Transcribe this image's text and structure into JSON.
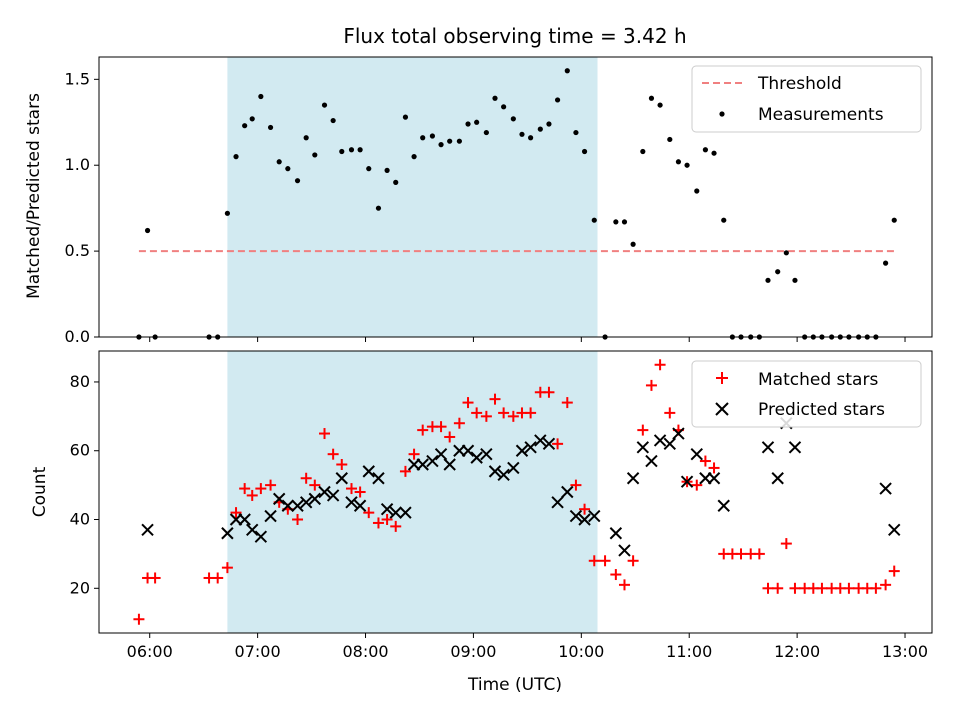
{
  "chart_data": {
    "title": "Flux total observing time = 3.42 h",
    "xlabel": "Time (UTC)",
    "x_ticks": [
      "06:00",
      "07:00",
      "08:00",
      "09:00",
      "10:00",
      "11:00",
      "12:00",
      "13:00"
    ],
    "x_unit": "hours (UTC)",
    "xlim": [
      5.53,
      13.25
    ],
    "shaded_region": [
      6.72,
      10.15
    ],
    "shaded_color": "#add8e6",
    "panels": [
      {
        "type": "scatter",
        "ylabel": "Matched/Predicted stars",
        "ylim": [
          0,
          1.63
        ],
        "y_ticks": [
          0.0,
          0.5,
          1.0,
          1.5
        ],
        "legend_position": "top-right",
        "threshold": {
          "name": "Threshold",
          "y": 0.5,
          "x_range": [
            5.9,
            12.92
          ],
          "color": "#f08080"
        },
        "series": [
          {
            "name": "Measurements",
            "color": "#000000",
            "marker": "dot",
            "x": [
              5.9,
              5.98,
              6.05,
              6.55,
              6.63,
              6.72,
              6.8,
              6.88,
              6.95,
              7.03,
              7.12,
              7.2,
              7.28,
              7.37,
              7.45,
              7.53,
              7.62,
              7.7,
              7.78,
              7.87,
              7.95,
              8.03,
              8.12,
              8.2,
              8.28,
              8.37,
              8.45,
              8.53,
              8.62,
              8.7,
              8.78,
              8.87,
              8.95,
              9.03,
              9.12,
              9.2,
              9.28,
              9.37,
              9.45,
              9.53,
              9.62,
              9.7,
              9.78,
              9.87,
              9.95,
              10.03,
              10.12,
              10.22,
              10.32,
              10.4,
              10.48,
              10.57,
              10.65,
              10.73,
              10.82,
              10.9,
              10.98,
              11.07,
              11.15,
              11.23,
              11.32,
              11.4,
              11.48,
              11.57,
              11.65,
              11.73,
              11.82,
              11.9,
              11.98,
              12.07,
              12.15,
              12.23,
              12.32,
              12.4,
              12.48,
              12.57,
              12.65,
              12.73,
              12.82,
              12.9
            ],
            "y": [
              0.0,
              0.62,
              0.0,
              0.0,
              0.0,
              0.72,
              1.05,
              1.23,
              1.27,
              1.4,
              1.22,
              1.02,
              0.98,
              0.91,
              1.16,
              1.06,
              1.35,
              1.26,
              1.08,
              1.09,
              1.09,
              0.98,
              0.75,
              0.97,
              0.9,
              1.28,
              1.05,
              1.16,
              1.17,
              1.12,
              1.14,
              1.14,
              1.24,
              1.25,
              1.19,
              1.39,
              1.34,
              1.27,
              1.18,
              1.16,
              1.21,
              1.24,
              1.38,
              1.55,
              1.19,
              1.08,
              0.68,
              0.0,
              0.67,
              0.67,
              0.54,
              1.08,
              1.39,
              1.35,
              1.15,
              1.02,
              1.0,
              0.85,
              1.09,
              1.07,
              0.68,
              0.0,
              0.0,
              0.0,
              0.0,
              0.33,
              0.38,
              0.49,
              0.33,
              0.0,
              0.0,
              0.0,
              0.0,
              0.0,
              0.0,
              0.0,
              0.0,
              0.0,
              0.43,
              0.68
            ]
          }
        ]
      },
      {
        "type": "scatter",
        "ylabel": "Count",
        "ylim": [
          7,
          89
        ],
        "y_ticks": [
          20,
          40,
          60,
          80
        ],
        "legend_position": "top-right",
        "series": [
          {
            "name": "Matched stars",
            "color": "#ff0000",
            "marker": "plus",
            "x": [
              5.9,
              5.98,
              6.05,
              6.55,
              6.63,
              6.72,
              6.8,
              6.88,
              6.95,
              7.03,
              7.12,
              7.2,
              7.28,
              7.37,
              7.45,
              7.53,
              7.62,
              7.7,
              7.78,
              7.87,
              7.95,
              8.03,
              8.12,
              8.2,
              8.28,
              8.37,
              8.45,
              8.53,
              8.62,
              8.7,
              8.78,
              8.87,
              8.95,
              9.03,
              9.12,
              9.2,
              9.28,
              9.37,
              9.45,
              9.53,
              9.62,
              9.7,
              9.78,
              9.87,
              9.95,
              10.03,
              10.12,
              10.22,
              10.32,
              10.4,
              10.48,
              10.57,
              10.65,
              10.73,
              10.82,
              10.9,
              10.98,
              11.07,
              11.15,
              11.23,
              11.32,
              11.4,
              11.48,
              11.57,
              11.65,
              11.73,
              11.82,
              11.9,
              11.98,
              12.07,
              12.15,
              12.23,
              12.32,
              12.4,
              12.48,
              12.57,
              12.65,
              12.73,
              12.82,
              12.9
            ],
            "y": [
              11,
              23,
              23,
              23,
              23,
              26,
              42,
              49,
              47,
              49,
              50,
              45,
              43,
              40,
              52,
              50,
              65,
              59,
              56,
              49,
              48,
              42,
              39,
              40,
              38,
              54,
              59,
              66,
              67,
              67,
              64,
              68,
              74,
              71,
              70,
              75,
              71,
              70,
              71,
              71,
              77,
              77,
              62,
              74,
              50,
              43,
              28,
              28,
              24,
              21,
              28,
              66,
              79,
              85,
              71,
              66,
              51,
              50,
              57,
              55,
              30,
              30,
              30,
              30,
              30,
              20,
              20,
              33,
              20,
              20,
              20,
              20,
              20,
              20,
              20,
              20,
              20,
              20,
              21,
              25
            ]
          },
          {
            "name": "Predicted stars",
            "color": "#000000",
            "marker": "x",
            "x": [
              5.98,
              6.72,
              6.8,
              6.88,
              6.95,
              7.03,
              7.12,
              7.2,
              7.28,
              7.37,
              7.45,
              7.53,
              7.62,
              7.7,
              7.78,
              7.87,
              7.95,
              8.03,
              8.12,
              8.2,
              8.28,
              8.37,
              8.45,
              8.53,
              8.62,
              8.7,
              8.78,
              8.87,
              8.95,
              9.03,
              9.12,
              9.2,
              9.28,
              9.37,
              9.45,
              9.53,
              9.62,
              9.7,
              9.78,
              9.87,
              9.95,
              10.03,
              10.12,
              10.32,
              10.4,
              10.48,
              10.57,
              10.65,
              10.73,
              10.82,
              10.9,
              10.98,
              11.07,
              11.15,
              11.23,
              11.32,
              11.73,
              11.82,
              11.9,
              11.98,
              12.82,
              12.9
            ],
            "y": [
              37,
              36,
              40,
              40,
              37,
              35,
              41,
              46,
              44,
              44,
              45,
              46,
              48,
              47,
              52,
              45,
              44,
              54,
              52,
              43,
              42,
              42,
              56,
              56,
              57,
              59,
              56,
              60,
              60,
              58,
              59,
              54,
              53,
              55,
              60,
              61,
              63,
              62,
              45,
              48,
              41,
              40,
              41,
              36,
              31,
              52,
              61,
              57,
              63,
              62,
              65,
              51,
              59,
              52,
              52,
              44,
              61,
              52,
              68,
              61,
              49,
              37
            ]
          }
        ]
      }
    ]
  }
}
